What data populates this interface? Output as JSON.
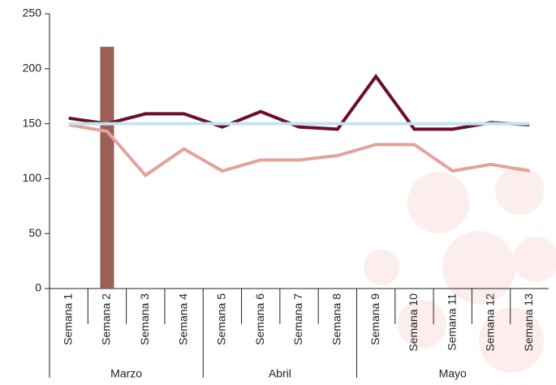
{
  "chart_data": {
    "type": "line",
    "groups": [
      {
        "label": "Marzo",
        "categories": [
          "Semana 1",
          "Semana 2",
          "Semana 3",
          "Semana 4"
        ]
      },
      {
        "label": "Abril",
        "categories": [
          "Semana 5",
          "Semana 6",
          "Semana 7",
          "Semana 8"
        ]
      },
      {
        "label": "Mayo",
        "categories": [
          "Semana 9",
          "Semana 10",
          "Semana 11",
          "Semana 12",
          "Semana 13"
        ]
      }
    ],
    "series": [
      {
        "type": "bar",
        "color": "#9c5f57",
        "values": [
          null,
          220,
          null,
          null,
          null,
          null,
          null,
          null,
          null,
          null,
          null,
          null,
          null
        ]
      },
      {
        "type": "line",
        "color": "#6b0f22",
        "values": [
          155,
          150,
          159,
          159,
          147,
          161,
          147,
          145,
          193,
          145,
          145,
          151,
          149
        ]
      },
      {
        "type": "line",
        "color": "#e3a39b",
        "values": [
          149,
          143,
          103,
          127,
          107,
          117,
          117,
          121,
          131,
          131,
          107,
          113,
          107
        ]
      },
      {
        "type": "line",
        "color": "#c3e3f5",
        "values": [
          150,
          150,
          150,
          150,
          150,
          150,
          150,
          150,
          150,
          150,
          150,
          150,
          150
        ]
      }
    ],
    "ylim": [
      0,
      250
    ],
    "yticks": [
      0,
      50,
      100,
      150,
      200,
      250
    ],
    "grid": false
  }
}
